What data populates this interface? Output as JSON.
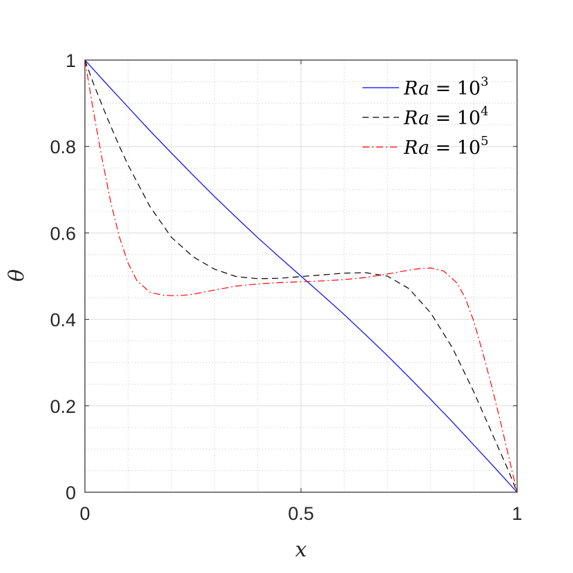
{
  "chart_data": {
    "type": "line",
    "title": "",
    "xlabel": "x",
    "ylabel": "θ",
    "xlim": [
      0,
      1
    ],
    "ylim": [
      0,
      1
    ],
    "x_ticks": [
      0,
      0.5,
      1
    ],
    "x_tick_labels": [
      "0",
      "0.5",
      "1"
    ],
    "y_ticks": [
      0,
      0.2,
      0.4,
      0.6,
      0.8,
      1
    ],
    "y_tick_labels": [
      "0",
      "0.2",
      "0.4",
      "0.6",
      "0.8",
      "1"
    ],
    "grid": true,
    "minor_grid": true,
    "legend_position": "top-right",
    "series": [
      {
        "name": "Ra = 10^3",
        "name_base": "Ra",
        "name_eq": " = 10",
        "name_exp": "3",
        "color": "#0000ff",
        "dash": "solid",
        "x": [
          0,
          0.05,
          0.1,
          0.15,
          0.2,
          0.25,
          0.3,
          0.35,
          0.4,
          0.45,
          0.5,
          0.55,
          0.6,
          0.65,
          0.7,
          0.75,
          0.8,
          0.85,
          0.9,
          0.95,
          1
        ],
        "y": [
          1,
          0.945,
          0.891,
          0.837,
          0.785,
          0.734,
          0.684,
          0.636,
          0.589,
          0.544,
          0.5,
          0.456,
          0.411,
          0.364,
          0.316,
          0.266,
          0.215,
          0.163,
          0.109,
          0.055,
          0
        ]
      },
      {
        "name": "Ra = 10^4",
        "name_base": "Ra",
        "name_eq": " = 10",
        "name_exp": "4",
        "color": "#000000",
        "dash": "dashed",
        "x": [
          0,
          0.02,
          0.05,
          0.08,
          0.1,
          0.15,
          0.2,
          0.25,
          0.3,
          0.35,
          0.4,
          0.45,
          0.5,
          0.55,
          0.6,
          0.65,
          0.7,
          0.75,
          0.8,
          0.85,
          0.9,
          0.95,
          0.98,
          1
        ],
        "y": [
          1,
          0.945,
          0.87,
          0.8,
          0.757,
          0.662,
          0.59,
          0.545,
          0.516,
          0.499,
          0.494,
          0.495,
          0.499,
          0.503,
          0.507,
          0.508,
          0.5,
          0.471,
          0.415,
          0.335,
          0.232,
          0.118,
          0.05,
          0
        ]
      },
      {
        "name": "Ra = 10^5",
        "name_base": "Ra",
        "name_eq": " = 10",
        "name_exp": "5",
        "color": "#ff0000",
        "dash": "dashdot",
        "x": [
          0,
          0.02,
          0.04,
          0.06,
          0.08,
          0.1,
          0.12,
          0.15,
          0.18,
          0.2,
          0.22,
          0.25,
          0.3,
          0.35,
          0.4,
          0.45,
          0.5,
          0.55,
          0.6,
          0.65,
          0.7,
          0.75,
          0.78,
          0.8,
          0.83,
          0.86,
          0.88,
          0.9,
          0.92,
          0.94,
          0.96,
          0.98,
          1
        ],
        "y": [
          1,
          0.88,
          0.77,
          0.67,
          0.59,
          0.53,
          0.49,
          0.463,
          0.456,
          0.455,
          0.455,
          0.458,
          0.468,
          0.477,
          0.482,
          0.485,
          0.487,
          0.489,
          0.492,
          0.497,
          0.505,
          0.514,
          0.518,
          0.519,
          0.512,
          0.485,
          0.45,
          0.395,
          0.325,
          0.25,
          0.17,
          0.085,
          0
        ]
      }
    ]
  }
}
